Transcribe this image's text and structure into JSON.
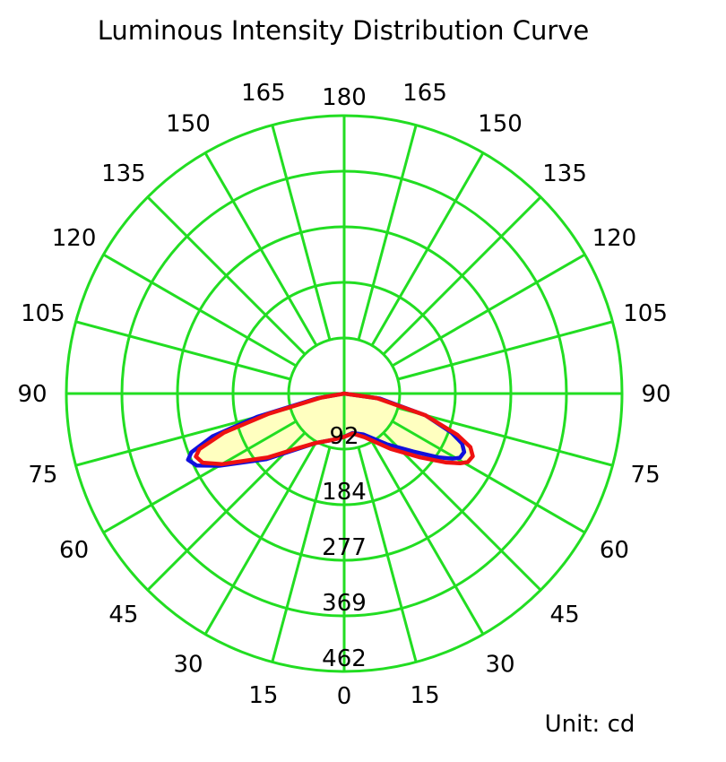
{
  "title": "Luminous Intensity Distribution Curve",
  "unit_label": "Unit: cd",
  "colors": {
    "grid": "#22dd22",
    "fill": "#ffffc0",
    "series_blue": "#1010dd",
    "series_red": "#ee1111"
  },
  "chart_data": {
    "type": "polar",
    "title": "Luminous Intensity Distribution Curve",
    "unit": "cd",
    "radial_ticks": [
      "92",
      "184",
      "277",
      "369",
      "462"
    ],
    "radial_max": 462,
    "angle_labels_left": [
      "0",
      "15",
      "30",
      "45",
      "60",
      "75",
      "90",
      "105",
      "120",
      "135",
      "150",
      "165",
      "180"
    ],
    "angle_labels_right": [
      "15",
      "30",
      "45",
      "60",
      "75",
      "90",
      "105",
      "120",
      "135",
      "150",
      "165"
    ],
    "grid": true,
    "series": [
      {
        "color": "blue",
        "points": [
          {
            "angle": -90,
            "value": 0
          },
          {
            "angle": -80,
            "value": 45
          },
          {
            "angle": -75,
            "value": 150
          },
          {
            "angle": -72,
            "value": 230
          },
          {
            "angle": -69,
            "value": 272
          },
          {
            "angle": -67,
            "value": 282
          },
          {
            "angle": -64,
            "value": 273
          },
          {
            "angle": -60,
            "value": 240
          },
          {
            "angle": -50,
            "value": 170
          },
          {
            "angle": -40,
            "value": 120
          },
          {
            "angle": -30,
            "value": 95
          },
          {
            "angle": -15,
            "value": 80
          },
          {
            "angle": 0,
            "value": 72
          },
          {
            "angle": 12,
            "value": 67
          },
          {
            "angle": 25,
            "value": 75
          },
          {
            "angle": 40,
            "value": 110
          },
          {
            "angle": 50,
            "value": 150
          },
          {
            "angle": 56,
            "value": 190
          },
          {
            "angle": 59,
            "value": 210
          },
          {
            "angle": 61,
            "value": 220
          },
          {
            "angle": 64,
            "value": 222
          },
          {
            "angle": 67,
            "value": 213
          },
          {
            "angle": 70,
            "value": 190
          },
          {
            "angle": 75,
            "value": 140
          },
          {
            "angle": 82,
            "value": 60
          },
          {
            "angle": 90,
            "value": 0
          }
        ]
      },
      {
        "color": "red",
        "points": [
          {
            "angle": -90,
            "value": 0
          },
          {
            "angle": -80,
            "value": 40
          },
          {
            "angle": -75,
            "value": 130
          },
          {
            "angle": -72,
            "value": 210
          },
          {
            "angle": -69,
            "value": 258
          },
          {
            "angle": -67,
            "value": 268
          },
          {
            "angle": -64,
            "value": 262
          },
          {
            "angle": -60,
            "value": 235
          },
          {
            "angle": -50,
            "value": 165
          },
          {
            "angle": -40,
            "value": 118
          },
          {
            "angle": -30,
            "value": 95
          },
          {
            "angle": -15,
            "value": 80
          },
          {
            "angle": 0,
            "value": 72
          },
          {
            "angle": 12,
            "value": 68
          },
          {
            "angle": 25,
            "value": 80
          },
          {
            "angle": 40,
            "value": 120
          },
          {
            "angle": 50,
            "value": 165
          },
          {
            "angle": 56,
            "value": 205
          },
          {
            "angle": 59,
            "value": 225
          },
          {
            "angle": 61,
            "value": 235
          },
          {
            "angle": 64,
            "value": 238
          },
          {
            "angle": 67,
            "value": 228
          },
          {
            "angle": 70,
            "value": 200
          },
          {
            "angle": 75,
            "value": 140
          },
          {
            "angle": 82,
            "value": 55
          },
          {
            "angle": 90,
            "value": 0
          }
        ]
      }
    ]
  }
}
